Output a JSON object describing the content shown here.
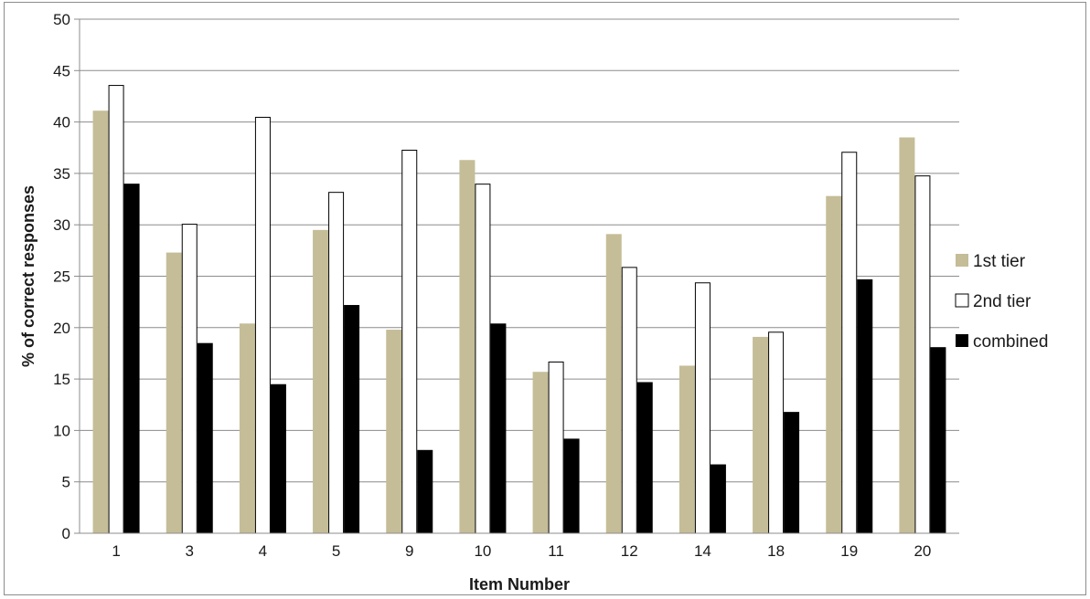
{
  "chart_data": {
    "type": "bar",
    "xlabel": "Item Number",
    "ylabel": "% of correct responses",
    "ylim": [
      0,
      50
    ],
    "yticks": [
      0,
      5,
      10,
      15,
      20,
      25,
      30,
      35,
      40,
      45,
      50
    ],
    "grid": "horizontal",
    "legend_position": "right",
    "categories": [
      "1",
      "3",
      "4",
      "5",
      "9",
      "10",
      "11",
      "12",
      "14",
      "18",
      "19",
      "20"
    ],
    "series": [
      {
        "name": "1st tier",
        "color": "#c4bd97",
        "stroke": "none",
        "values": [
          41.1,
          27.3,
          20.4,
          29.5,
          19.8,
          36.3,
          15.7,
          29.1,
          16.3,
          19.1,
          32.8,
          38.5
        ]
      },
      {
        "name": "2nd tier",
        "color": "#ffffff",
        "stroke": "#000000",
        "values": [
          43.6,
          30.1,
          40.5,
          33.2,
          37.3,
          34.0,
          16.7,
          25.9,
          24.4,
          19.6,
          37.1,
          34.8
        ]
      },
      {
        "name": "combined",
        "color": "#000000",
        "stroke": "none",
        "values": [
          34.0,
          18.5,
          14.5,
          22.2,
          8.1,
          20.4,
          9.2,
          14.7,
          6.7,
          11.8,
          24.7,
          18.1
        ]
      }
    ]
  }
}
